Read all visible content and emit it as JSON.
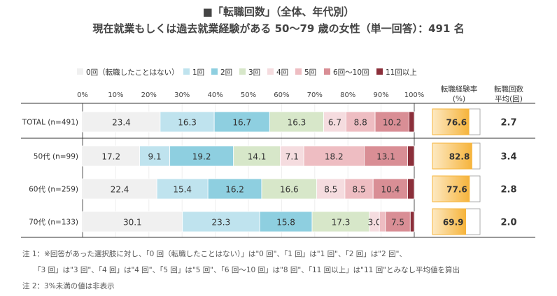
{
  "title": {
    "line1": "■「転職回数」（全体、年代別）",
    "line2": "現在就業もしくは過去就業経験がある 50～79 歳の女性（単一回答）：491 名"
  },
  "colors": {
    "c0": "#f0f0f0",
    "c1": "#bfe3ee",
    "c2": "#8ecfe0",
    "c3": "#d7e7c9",
    "c4": "#f5dcdf",
    "c5": "#eebdc2",
    "c6": "#d98e95",
    "c11": "#8b2f3a",
    "gauge": "#f6b43c",
    "gauge_light": "#fde9c2"
  },
  "chart_data": {
    "type": "stacked-bar-horizontal",
    "legend": [
      "0回（転職したことはない）",
      "1回",
      "2回",
      "3回",
      "4回",
      "5回",
      "6回～10回",
      "11回以上"
    ],
    "x_ticks": [
      "0%",
      "10%",
      "20%",
      "30%",
      "40%",
      "50%",
      "60%",
      "70%",
      "80%",
      "90%",
      "100%"
    ],
    "xlim": [
      0,
      100
    ],
    "categories": [
      "TOTAL (n=491)",
      "50代 (n=99)",
      "60代 (n=259)",
      "70代 (n=133)"
    ],
    "series": [
      {
        "name": "0回（転職したことはない）",
        "values": [
          23.4,
          17.2,
          22.4,
          30.1
        ]
      },
      {
        "name": "1回",
        "values": [
          16.3,
          9.1,
          15.4,
          23.3
        ]
      },
      {
        "name": "2回",
        "values": [
          16.7,
          19.2,
          16.2,
          15.8
        ]
      },
      {
        "name": "3回",
        "values": [
          16.3,
          14.1,
          16.6,
          17.3
        ]
      },
      {
        "name": "4回",
        "values": [
          6.7,
          7.1,
          8.5,
          3.0
        ]
      },
      {
        "name": "5回",
        "values": [
          8.8,
          18.2,
          8.5,
          1.8
        ]
      },
      {
        "name": "6回～10回",
        "values": [
          10.2,
          13.1,
          10.4,
          7.5
        ]
      },
      {
        "name": "11回以上",
        "values": [
          1.6,
          2.0,
          2.0,
          1.2
        ]
      }
    ],
    "labels": [
      [
        "23.4",
        "16.3",
        "16.7",
        "16.3",
        "6.7",
        "8.8",
        "10.2",
        ""
      ],
      [
        "17.2",
        "9.1",
        "19.2",
        "14.1",
        "7.1",
        "18.2",
        "13.1",
        ""
      ],
      [
        "22.4",
        "15.4",
        "16.2",
        "16.6",
        "8.5",
        "8.5",
        "10.4",
        ""
      ],
      [
        "30.1",
        "23.3",
        "15.8",
        "17.3",
        "3.0",
        "",
        "7.5",
        ""
      ]
    ],
    "rate_header": [
      "転職経験率",
      "(%)"
    ],
    "avg_header": [
      "転職回数",
      "平均(回)"
    ],
    "rate_values": [
      76.6,
      82.8,
      77.6,
      69.9
    ],
    "rate_labels": [
      "76.6",
      "82.8",
      "77.6",
      "69.9"
    ],
    "avg_labels": [
      "2.7",
      "3.4",
      "2.8",
      "2.0"
    ]
  },
  "notes": [
    "注 1：※回答があった選択肢に対し、「0 回（転職したことはない）」は\"0 回\"、「1 回」は\"1 回\"、「2 回」は\"2 回\"、",
    "「3 回」は\"3 回\"、「4 回」は\"4 回\"、「5 回」は\"5 回\"、「6 回～10 回」は\"8 回\"、「11 回以上」は\"11 回\"とみなし平均値を算出",
    "注 2：3%未満の値は非表示"
  ]
}
